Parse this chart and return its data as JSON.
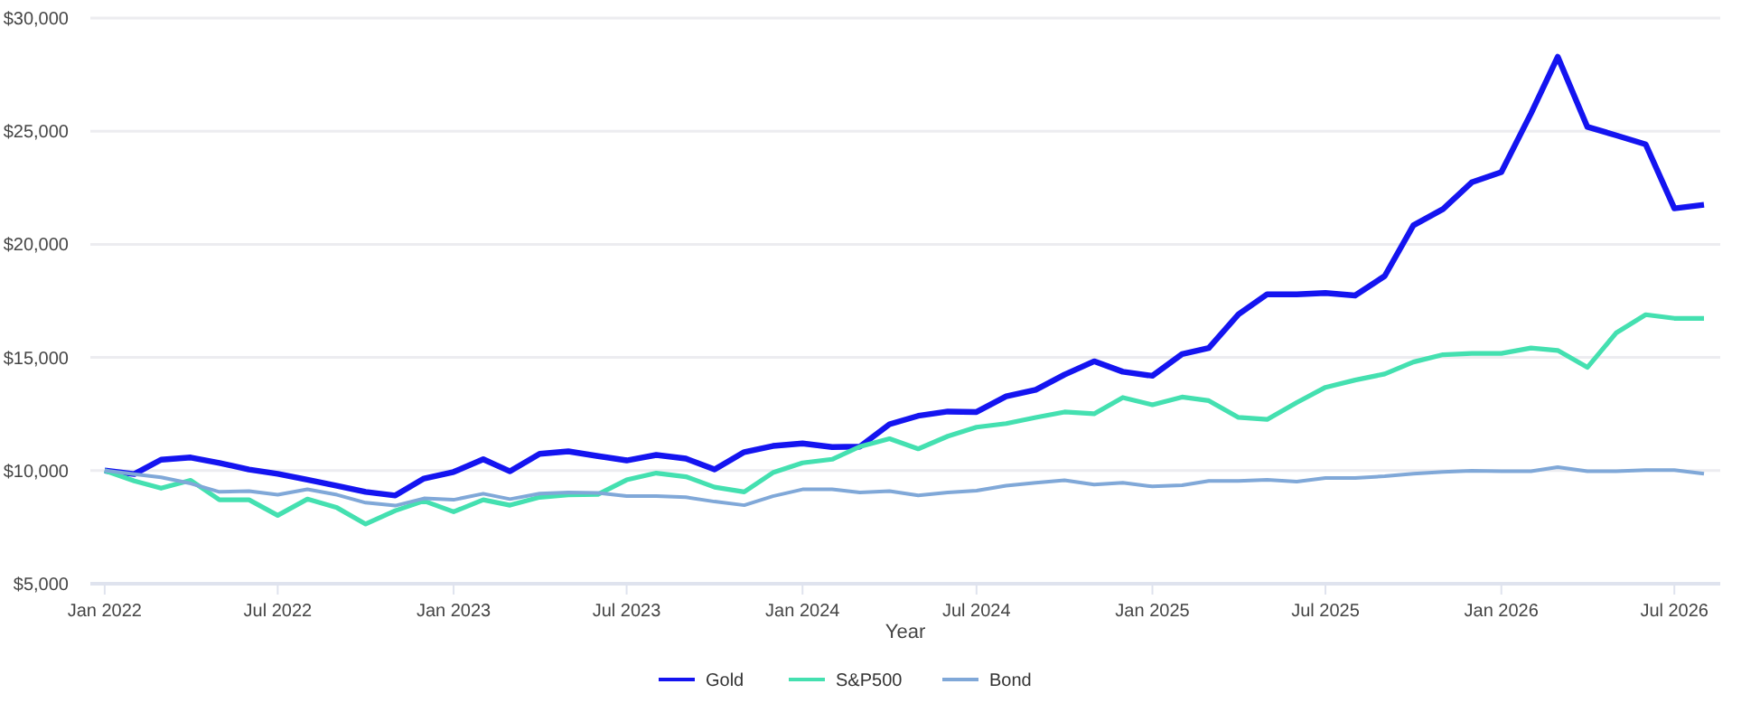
{
  "chart_data": {
    "type": "line",
    "xlabel": "Year",
    "x": [
      "2022-01",
      "2022-02",
      "2022-03",
      "2022-04",
      "2022-05",
      "2022-06",
      "2022-07",
      "2022-08",
      "2022-09",
      "2022-10",
      "2022-11",
      "2022-12",
      "2023-01",
      "2023-02",
      "2023-03",
      "2023-04",
      "2023-05",
      "2023-06",
      "2023-07",
      "2023-08",
      "2023-09",
      "2023-10",
      "2023-11",
      "2023-12",
      "2024-01",
      "2024-02",
      "2024-03",
      "2024-04",
      "2024-05",
      "2024-06",
      "2024-07",
      "2024-08",
      "2024-09",
      "2024-10",
      "2024-11",
      "2024-12",
      "2025-01",
      "2025-02",
      "2025-03",
      "2025-04",
      "2025-05",
      "2025-06",
      "2025-07",
      "2025-08",
      "2025-09",
      "2025-10",
      "2025-11",
      "2025-12",
      "2026-01",
      "2026-02",
      "2026-03",
      "2026-04",
      "2026-05",
      "2026-06",
      "2026-07",
      "2026-08"
    ],
    "series": [
      {
        "name": "Gold",
        "color": "#1414f0",
        "values": [
          10000,
          9850,
          10480,
          10580,
          10340,
          10050,
          9860,
          9600,
          9330,
          9060,
          8900,
          9650,
          9940,
          10500,
          9970,
          10740,
          10850,
          10640,
          10450,
          10690,
          10530,
          10050,
          10820,
          11090,
          11200,
          11040,
          11060,
          12050,
          12420,
          12610,
          12590,
          13280,
          13570,
          14240,
          14830,
          14370,
          14190,
          15150,
          15420,
          16910,
          17790,
          17790,
          17850,
          17740,
          18600,
          20840,
          21560,
          22740,
          23190,
          25780,
          28290,
          25190,
          24820,
          24420,
          21590,
          21750
        ]
      },
      {
        "name": "S&P500",
        "color": "#44e0b0",
        "values": [
          10000,
          9540,
          9220,
          9570,
          8710,
          8710,
          8020,
          8740,
          8360,
          7640,
          8230,
          8660,
          8180,
          8710,
          8470,
          8820,
          8930,
          8950,
          9590,
          9890,
          9730,
          9270,
          9060,
          9910,
          10340,
          10500,
          11060,
          11410,
          10960,
          11520,
          11920,
          12080,
          12350,
          12590,
          12510,
          13230,
          12910,
          13250,
          13090,
          12350,
          12260,
          13010,
          13680,
          14000,
          14270,
          14800,
          15120,
          15180,
          15180,
          15420,
          15310,
          14560,
          16080,
          16890,
          16730,
          16730
        ]
      },
      {
        "name": "Bond",
        "color": "#80a8d8",
        "values": [
          10000,
          9840,
          9700,
          9430,
          9060,
          9090,
          8930,
          9170,
          8930,
          8580,
          8450,
          8770,
          8710,
          8980,
          8740,
          8980,
          9030,
          9010,
          8870,
          8870,
          8820,
          8630,
          8470,
          8870,
          9170,
          9170,
          9030,
          9090,
          8900,
          9030,
          9110,
          9330,
          9460,
          9570,
          9380,
          9460,
          9300,
          9350,
          9540,
          9540,
          9590,
          9510,
          9670,
          9670,
          9750,
          9860,
          9940,
          9990,
          9970,
          9970,
          10150,
          9970,
          9970,
          10020,
          10020,
          9860
        ]
      }
    ],
    "xlim": [
      "2021-12-17",
      "2026-08-18"
    ],
    "xticks": [
      {
        "value": "2022-01",
        "label": "Jan 2022"
      },
      {
        "value": "2022-07",
        "label": "Jul 2022"
      },
      {
        "value": "2023-01",
        "label": "Jan 2023"
      },
      {
        "value": "2023-07",
        "label": "Jul 2023"
      },
      {
        "value": "2024-01",
        "label": "Jan 2024"
      },
      {
        "value": "2024-07",
        "label": "Jul 2024"
      },
      {
        "value": "2025-01",
        "label": "Jan 2025"
      },
      {
        "value": "2025-07",
        "label": "Jul 2025"
      },
      {
        "value": "2026-01",
        "label": "Jan 2026"
      },
      {
        "value": "2026-07",
        "label": "Jul 2026"
      }
    ],
    "ylim": [
      5000,
      30000
    ],
    "yticks": [
      {
        "value": 5000,
        "label": "$5,000"
      },
      {
        "value": 10000,
        "label": "$10,000"
      },
      {
        "value": 15000,
        "label": "$15,000"
      },
      {
        "value": 20000,
        "label": "$20,000"
      },
      {
        "value": 25000,
        "label": "$25,000"
      },
      {
        "value": 30000,
        "label": "$30,000"
      }
    ],
    "grid": "y",
    "legend": "bottom",
    "marker": "none",
    "line_style": "solid"
  }
}
